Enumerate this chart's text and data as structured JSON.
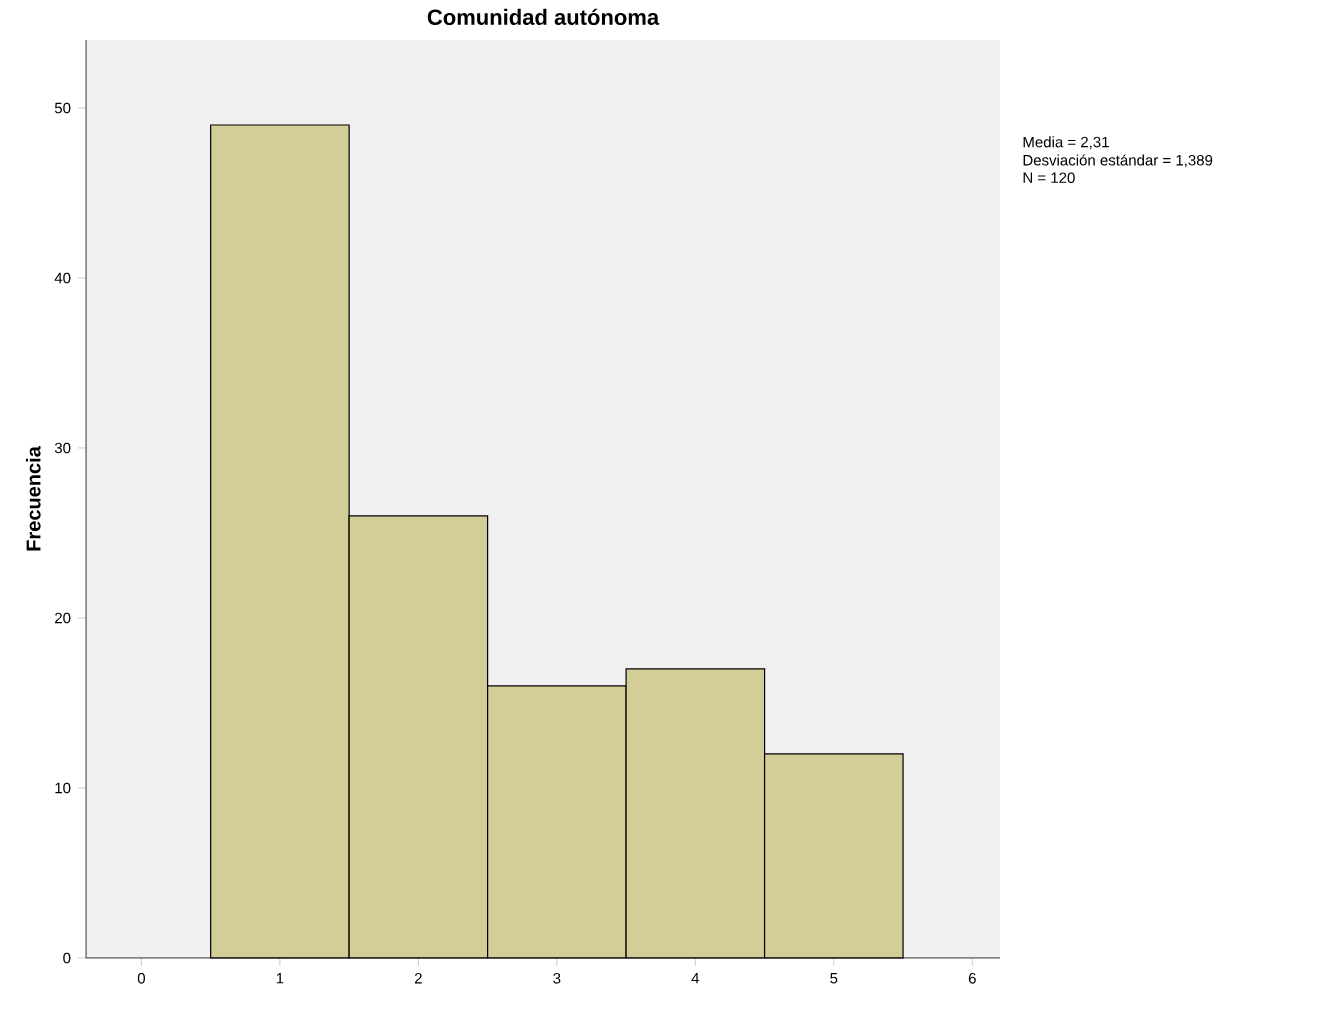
{
  "chart_data": {
    "type": "histogram",
    "title": "Comunidad autónoma",
    "ylabel": "Frecuencia",
    "bins": [
      0.5,
      1.5,
      2.5,
      3.5,
      4.5,
      5.5
    ],
    "values": [
      49,
      26,
      16,
      17,
      12
    ],
    "color": "#d3ce97",
    "xlim": [
      -0.4,
      6.2
    ],
    "ylim": [
      0,
      54
    ],
    "xticks": [
      0,
      1,
      2,
      3,
      4,
      5,
      6
    ],
    "yticks": [
      0,
      10,
      20,
      30,
      40,
      50
    ],
    "annotations": [
      "Media = 2,31",
      "Desviación estándar = 1,389",
      "N = 120"
    ]
  }
}
